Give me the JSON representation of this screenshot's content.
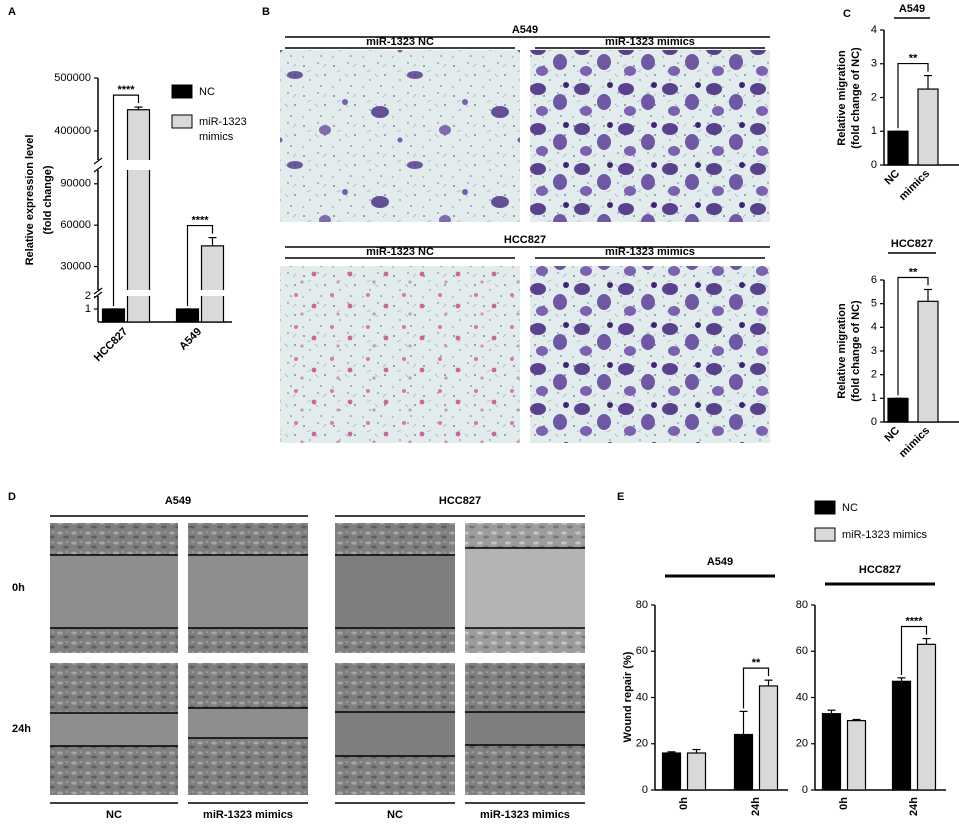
{
  "panel_labels": [
    "A",
    "B",
    "C",
    "D",
    "E"
  ],
  "chart_data": [
    {
      "type": "bar",
      "ylabel": [
        "Relative expression level",
        "(fold change)"
      ],
      "categories": [
        "HCC827",
        "A549"
      ],
      "series": [
        {
          "name": "NC",
          "color": "#000000",
          "values": [
            1,
            1
          ],
          "errors": [
            0,
            0
          ]
        },
        {
          "name": "miR-1323 mimics",
          "color": "#d9d9d9",
          "values": [
            440000,
            45000
          ],
          "errors": [
            5000,
            6000
          ]
        }
      ],
      "ylim_segments": [
        [
          0,
          2
        ],
        [
          13000,
          100000
        ],
        [
          345000,
          500000
        ]
      ],
      "yticks": [
        1,
        2,
        30000,
        60000,
        90000,
        400000,
        500000
      ],
      "annotations": [
        "****",
        "****"
      ]
    },
    {
      "type": "bar",
      "title": "A549",
      "ylabel": [
        "Relative migration",
        "(fold change of NC)"
      ],
      "categories": [
        "NC",
        "mimics"
      ],
      "values": [
        1,
        2.25
      ],
      "errors": [
        0,
        0.4
      ],
      "colors": [
        "#000000",
        "#d9d9d9"
      ],
      "ylim": [
        0,
        4
      ],
      "yticks": [
        0,
        1,
        2,
        3,
        4
      ],
      "annotations": [
        "**"
      ]
    },
    {
      "type": "bar",
      "title": "HCC827",
      "ylabel": [
        "Relative migration",
        "(fold change of NC)"
      ],
      "categories": [
        "NC",
        "mimics"
      ],
      "values": [
        1,
        5.1
      ],
      "errors": [
        0,
        0.5
      ],
      "colors": [
        "#000000",
        "#d9d9d9"
      ],
      "ylim": [
        0,
        6
      ],
      "yticks": [
        0,
        1,
        2,
        3,
        4,
        5,
        6
      ],
      "annotations": [
        "**"
      ]
    },
    {
      "type": "bar",
      "title": "A549",
      "ylabel": "Wound repair (%)",
      "categories": [
        "0h",
        "24h"
      ],
      "series": [
        {
          "name": "NC",
          "color": "#000000",
          "values": [
            16,
            24
          ],
          "errors": [
            0.5,
            10
          ]
        },
        {
          "name": "miR-1323 mimics",
          "color": "#d9d9d9",
          "values": [
            16,
            45
          ],
          "errors": [
            1.5,
            2.5
          ]
        }
      ],
      "ylim": [
        0,
        80
      ],
      "yticks": [
        0,
        20,
        40,
        60,
        80
      ],
      "annotations": [
        "**"
      ]
    },
    {
      "type": "bar",
      "title": "HCC827",
      "categories": [
        "0h",
        "24h"
      ],
      "series": [
        {
          "color": "#000000",
          "values": [
            33,
            47
          ],
          "errors": [
            1.5,
            1.5
          ]
        },
        {
          "color": "#d9d9d9",
          "values": [
            30,
            63
          ],
          "errors": [
            0.5,
            2.5
          ]
        }
      ],
      "ylim": [
        0,
        80
      ],
      "yticks": [
        0,
        20,
        40,
        60,
        80
      ],
      "annotations": [
        "****"
      ]
    }
  ],
  "panel_B": {
    "groups": [
      {
        "title": "A549",
        "columns": [
          "miR-1323 NC",
          "miR-1323 mimics"
        ]
      },
      {
        "title": "HCC827",
        "columns": [
          "miR-1323 NC",
          "miR-1323 mimics"
        ]
      }
    ]
  },
  "panel_D": {
    "groups": [
      "A549",
      "HCC827"
    ],
    "rows": [
      "0h",
      "24h"
    ],
    "columns": [
      "NC",
      "miR-1323 mimics",
      "NC",
      "miR-1323 mimics"
    ]
  }
}
